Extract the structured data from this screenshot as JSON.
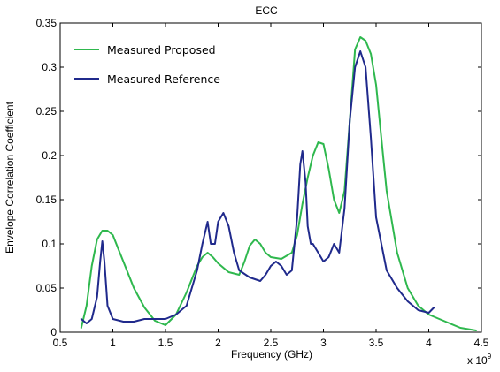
{
  "chart_data": {
    "type": "line",
    "title": "ECC",
    "xlabel": "Frequency (GHz)",
    "ylabel": "Envelope Correlation Coefficient",
    "x_multiplier": "x 10",
    "x_multiplier_exponent": "9",
    "xlim": [
      0.5,
      4.5
    ],
    "ylim": [
      0,
      0.35
    ],
    "x_ticks": [
      0.5,
      1,
      1.5,
      2,
      2.5,
      3,
      3.5,
      4,
      4.5
    ],
    "y_ticks": [
      0,
      0.05,
      0.1,
      0.15,
      0.2,
      0.25,
      0.3,
      0.35
    ],
    "grid": false,
    "legend_position": "top-left",
    "series": [
      {
        "name": "Measured Proposed",
        "color": "#2fb84e",
        "x": [
          0.7,
          0.75,
          0.8,
          0.85,
          0.9,
          0.95,
          1.0,
          1.05,
          1.1,
          1.2,
          1.3,
          1.4,
          1.5,
          1.6,
          1.7,
          1.8,
          1.85,
          1.9,
          1.95,
          2.0,
          2.1,
          2.2,
          2.25,
          2.3,
          2.35,
          2.4,
          2.45,
          2.5,
          2.6,
          2.7,
          2.75,
          2.8,
          2.85,
          2.9,
          2.95,
          3.0,
          3.05,
          3.1,
          3.15,
          3.2,
          3.25,
          3.3,
          3.35,
          3.4,
          3.45,
          3.5,
          3.55,
          3.6,
          3.7,
          3.8,
          3.9,
          4.0,
          4.1,
          4.2,
          4.3,
          4.4,
          4.45
        ],
        "y": [
          0.005,
          0.03,
          0.075,
          0.105,
          0.115,
          0.115,
          0.11,
          0.095,
          0.08,
          0.05,
          0.028,
          0.013,
          0.008,
          0.02,
          0.045,
          0.075,
          0.085,
          0.09,
          0.085,
          0.078,
          0.068,
          0.065,
          0.08,
          0.098,
          0.105,
          0.1,
          0.09,
          0.085,
          0.083,
          0.09,
          0.11,
          0.145,
          0.175,
          0.2,
          0.215,
          0.213,
          0.185,
          0.15,
          0.135,
          0.16,
          0.24,
          0.32,
          0.334,
          0.33,
          0.315,
          0.28,
          0.22,
          0.16,
          0.09,
          0.05,
          0.03,
          0.02,
          0.015,
          0.01,
          0.005,
          0.003,
          0.002
        ]
      },
      {
        "name": "Measured Reference",
        "color": "#202a8c",
        "x": [
          0.7,
          0.75,
          0.8,
          0.85,
          0.88,
          0.9,
          0.92,
          0.95,
          1.0,
          1.1,
          1.2,
          1.3,
          1.4,
          1.5,
          1.6,
          1.7,
          1.8,
          1.85,
          1.9,
          1.93,
          1.97,
          2.0,
          2.05,
          2.1,
          2.15,
          2.2,
          2.3,
          2.4,
          2.45,
          2.5,
          2.55,
          2.6,
          2.65,
          2.7,
          2.75,
          2.78,
          2.8,
          2.83,
          2.85,
          2.88,
          2.9,
          2.95,
          3.0,
          3.05,
          3.1,
          3.15,
          3.2,
          3.25,
          3.3,
          3.35,
          3.4,
          3.45,
          3.5,
          3.6,
          3.7,
          3.8,
          3.9,
          4.0,
          4.05
        ],
        "y": [
          0.015,
          0.01,
          0.015,
          0.04,
          0.08,
          0.103,
          0.08,
          0.03,
          0.015,
          0.012,
          0.012,
          0.015,
          0.015,
          0.015,
          0.02,
          0.03,
          0.07,
          0.1,
          0.125,
          0.1,
          0.1,
          0.125,
          0.135,
          0.12,
          0.09,
          0.07,
          0.062,
          0.058,
          0.065,
          0.075,
          0.08,
          0.075,
          0.065,
          0.07,
          0.13,
          0.19,
          0.205,
          0.17,
          0.12,
          0.1,
          0.1,
          0.09,
          0.08,
          0.085,
          0.1,
          0.09,
          0.14,
          0.24,
          0.3,
          0.318,
          0.3,
          0.22,
          0.13,
          0.07,
          0.05,
          0.035,
          0.025,
          0.022,
          0.028
        ]
      }
    ]
  }
}
